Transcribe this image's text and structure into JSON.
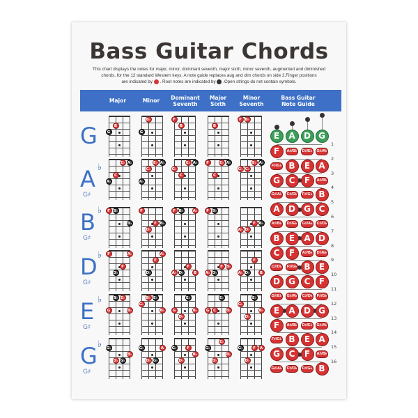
{
  "title": "Bass Guitar Chords",
  "description": {
    "line1": "This chart displays the notes for major, minor, dominant seventh, major sixth, minor seventh, augmented and diminished",
    "line2": "chords, for the 12 standard Western keys. A note guide replaces aug and dim chords on side 2.Finger positions",
    "line3a": "are indicated by",
    "line3b": ". Root notes are indicated by",
    "line3c": ".Open strings do not contain symbols."
  },
  "colors": {
    "finger": "#d93434",
    "root": "#2e2e2e",
    "header": "#3d70c6",
    "open_string": "#3c9e5a",
    "key_letter": "#3d70c6"
  },
  "header": {
    "columns": [
      "Major",
      "Minor",
      "Dominant Seventh",
      "Major Sixth",
      "Minor Seventh"
    ],
    "note_guide": "Bass Guitar Note Guide"
  },
  "keys": [
    {
      "letter": "G",
      "flat": "",
      "sub": "",
      "chords": [
        [
          {
            "s": 1,
            "f": 2,
            "n": "B"
          },
          {
            "s": 0,
            "f": 3,
            "n": "G",
            "r": true
          }
        ],
        [
          {
            "s": 1,
            "f": 1,
            "n": "B♭"
          },
          {
            "s": 0,
            "f": 3,
            "n": "G",
            "r": true
          }
        ],
        [
          {
            "s": 0,
            "f": 1,
            "n": "F"
          },
          {
            "s": 1,
            "f": 2,
            "n": "B"
          }
        ],
        [
          {
            "s": 1,
            "f": 2,
            "n": "B"
          }
        ],
        [
          {
            "s": 0,
            "f": 1,
            "n": "F"
          },
          {
            "s": 1,
            "f": 1,
            "n": "B♭"
          }
        ]
      ]
    },
    {
      "letter": "A",
      "flat": "♭",
      "sub": "G♯",
      "chords": [
        [
          {
            "s": 2,
            "f": 1,
            "n": "E♭"
          },
          {
            "s": 3,
            "f": 1,
            "n": "A♭",
            "r": true
          },
          {
            "s": 1,
            "f": 3,
            "n": "C"
          },
          {
            "s": 0,
            "f": 4,
            "n": "A♭",
            "r": true
          }
        ],
        [
          {
            "s": 2,
            "f": 1,
            "n": "E♭"
          },
          {
            "s": 3,
            "f": 1,
            "n": "A♭",
            "r": true
          },
          {
            "s": 1,
            "f": 2,
            "n": "C♭"
          },
          {
            "s": 0,
            "f": 4,
            "n": "A♭",
            "r": true
          }
        ],
        [
          {
            "s": 2,
            "f": 1,
            "n": "E♭"
          },
          {
            "s": 3,
            "f": 1,
            "n": "A♭",
            "r": true
          },
          {
            "s": 0,
            "f": 2,
            "n": "G♭"
          },
          {
            "s": 1,
            "f": 3,
            "n": "C"
          }
        ],
        [
          {
            "s": 0,
            "f": 1,
            "n": "F"
          },
          {
            "s": 2,
            "f": 1,
            "n": "E♭"
          },
          {
            "s": 3,
            "f": 1,
            "n": "A♭",
            "r": true
          },
          {
            "s": 1,
            "f": 3,
            "n": "C"
          }
        ],
        [
          {
            "s": 2,
            "f": 1,
            "n": "E♭"
          },
          {
            "s": 3,
            "f": 1,
            "n": "A♭",
            "r": true
          },
          {
            "s": 0,
            "f": 2,
            "n": "G♭"
          },
          {
            "s": 1,
            "f": 2,
            "n": "C♭"
          }
        ]
      ]
    },
    {
      "letter": "B",
      "flat": "♭",
      "sub": "G♯",
      "chords": [
        [
          {
            "s": 0,
            "f": 1,
            "n": "F"
          },
          {
            "s": 1,
            "f": 1,
            "n": "B♭",
            "r": true
          },
          {
            "s": 3,
            "f": 3,
            "n": "B♭",
            "r": true
          }
        ],
        [
          {
            "s": 0,
            "f": 1,
            "n": "F"
          },
          {
            "s": 2,
            "f": 3,
            "n": "F"
          },
          {
            "s": 3,
            "f": 3,
            "n": "B♭",
            "r": true
          },
          {
            "s": 1,
            "f": 4,
            "n": "D♭"
          }
        ],
        [
          {
            "s": 0,
            "f": 1,
            "n": "F"
          },
          {
            "s": 1,
            "f": 1,
            "n": "B♭",
            "r": true
          },
          {
            "s": 3,
            "f": 1,
            "n": "A♭"
          }
        ],
        [
          {
            "s": 0,
            "f": 1,
            "n": "F"
          },
          {
            "s": 1,
            "f": 1,
            "n": "B♭",
            "r": true
          }
        ],
        [
          {
            "s": 2,
            "f": 3,
            "n": "F"
          },
          {
            "s": 3,
            "f": 3,
            "n": "B♭",
            "r": true
          },
          {
            "s": 0,
            "f": 4,
            "n": "A♭"
          },
          {
            "s": 1,
            "f": 4,
            "n": "D♭"
          }
        ]
      ]
    },
    {
      "letter": "D",
      "flat": "♭",
      "sub": "G♯",
      "chords": [
        [
          {
            "s": 0,
            "f": 1,
            "n": "F"
          },
          {
            "s": 3,
            "f": 1,
            "n": "A♭"
          },
          {
            "s": 2,
            "f": 3,
            "n": "F"
          },
          {
            "s": 1,
            "f": 4,
            "n": "D♭",
            "r": true
          }
        ],
        [
          {
            "s": 3,
            "f": 1,
            "n": "A♭"
          },
          {
            "s": 2,
            "f": 2,
            "n": "F"
          },
          {
            "s": 1,
            "f": 4,
            "n": "D♭",
            "r": true
          }
        ],
        [
          {
            "s": 2,
            "f": 3,
            "n": "F"
          },
          {
            "s": 0,
            "f": 4,
            "n": "A♭"
          },
          {
            "s": 1,
            "f": 4,
            "n": "D♭",
            "r": true
          },
          {
            "s": 3,
            "f": 4,
            "n": "B"
          }
        ],
        [
          {
            "s": 2,
            "f": 3,
            "n": "F"
          },
          {
            "s": 3,
            "f": 3,
            "n": "B♭"
          },
          {
            "s": 0,
            "f": 4,
            "n": "A♭"
          },
          {
            "s": 1,
            "f": 4,
            "n": "D♭",
            "r": true
          }
        ],
        [
          {
            "s": 2,
            "f": 2,
            "n": "F"
          },
          {
            "s": 0,
            "f": 4,
            "n": "A♭"
          },
          {
            "s": 1,
            "f": 4,
            "n": "D♭",
            "r": true
          },
          {
            "s": 3,
            "f": 4,
            "n": "B"
          }
        ]
      ]
    },
    {
      "letter": "E",
      "flat": "♭",
      "sub": "G♯",
      "chords": [
        [
          {
            "s": 1,
            "f": 1,
            "n": "B♭",
            "r": true
          },
          {
            "s": 2,
            "f": 1,
            "n": "E♭"
          },
          {
            "s": 0,
            "f": 3,
            "n": "G"
          },
          {
            "s": 3,
            "f": 3,
            "n": "B♭"
          }
        ],
        [
          {
            "s": 1,
            "f": 1,
            "n": "B♭"
          },
          {
            "s": 2,
            "f": 1,
            "n": "E♭",
            "r": true
          },
          {
            "s": 0,
            "f": 2,
            "n": "G♭"
          },
          {
            "s": 3,
            "f": 3,
            "n": "B♭"
          }
        ],
        [
          {
            "s": 2,
            "f": 1,
            "n": "E♭",
            "r": true
          },
          {
            "s": 0,
            "f": 3,
            "n": "G"
          },
          {
            "s": 3,
            "f": 3,
            "n": "B♭"
          },
          {
            "s": 1,
            "f": 4,
            "n": "D♭"
          }
        ],
        [
          {
            "s": 2,
            "f": 1,
            "n": "E♭",
            "r": true
          },
          {
            "s": 0,
            "f": 3,
            "n": "G"
          },
          {
            "s": 1,
            "f": 3,
            "n": "C"
          },
          {
            "s": 3,
            "f": 3,
            "n": "B♭"
          }
        ],
        [
          {
            "s": 2,
            "f": 1,
            "n": "E♭",
            "r": true
          },
          {
            "s": 0,
            "f": 2,
            "n": "G♭"
          },
          {
            "s": 3,
            "f": 3,
            "n": "B♭"
          },
          {
            "s": 1,
            "f": 4,
            "n": "D♭"
          }
        ]
      ]
    },
    {
      "letter": "G",
      "flat": "♭",
      "sub": "G♯",
      "chords": [
        [
          {
            "s": 0,
            "f": 2,
            "n": "G♭",
            "r": true
          },
          {
            "s": 3,
            "f": 3,
            "n": "B♭"
          },
          {
            "s": 1,
            "f": 4,
            "n": "D♭"
          },
          {
            "s": 2,
            "f": 4,
            "n": "G♭",
            "r": true
          }
        ],
        [
          {
            "s": 0,
            "f": 2,
            "n": "G♭",
            "r": true
          },
          {
            "s": 3,
            "f": 2,
            "n": "A"
          },
          {
            "s": 1,
            "f": 4,
            "n": "D♭"
          },
          {
            "s": 2,
            "f": 4,
            "n": "G♭",
            "r": true
          }
        ],
        [
          {
            "s": 0,
            "f": 2,
            "n": "G♭",
            "r": true
          },
          {
            "s": 2,
            "f": 2,
            "n": "F"
          },
          {
            "s": 3,
            "f": 3,
            "n": "B♭"
          },
          {
            "s": 1,
            "f": 4,
            "n": "D♭"
          }
        ],
        [
          {
            "s": 2,
            "f": 1,
            "n": "E♭"
          },
          {
            "s": 0,
            "f": 2,
            "n": "G♭",
            "r": true
          },
          {
            "s": 3,
            "f": 3,
            "n": "B♭"
          },
          {
            "s": 1,
            "f": 4,
            "n": "D♭"
          }
        ],
        [
          {
            "s": 0,
            "f": 2,
            "n": "G♭",
            "r": true
          },
          {
            "s": 2,
            "f": 2,
            "n": "F"
          },
          {
            "s": 3,
            "f": 2,
            "n": "A"
          },
          {
            "s": 1,
            "f": 4,
            "n": "D♭"
          }
        ]
      ]
    }
  ],
  "note_guide": {
    "open": [
      "E",
      "A",
      "D",
      "G"
    ],
    "fret_numbers": [
      "1",
      "2",
      "3",
      "4",
      "5",
      "6",
      "7",
      "8",
      "9",
      "10",
      "11",
      "12",
      "13",
      "14",
      "15",
      "16"
    ],
    "strings": [
      [
        "F",
        "F♯/G♭",
        "G",
        "G♯/A♭",
        "A",
        "A♯/B♭",
        "B",
        "C",
        "C♯/D♭",
        "D",
        "D♯/E♭",
        "E",
        "F",
        "F♯/G♭",
        "G",
        "G♯/A♭"
      ],
      [
        "A♯/B♭",
        "B",
        "C",
        "C♯/D♭",
        "D",
        "D♯/E♭",
        "E",
        "F",
        "F♯/G♭",
        "G",
        "G♯/A♭",
        "A",
        "A♯/B♭",
        "B",
        "C",
        "C♯/D♭"
      ],
      [
        "D♯/E♭",
        "E",
        "F",
        "F♯/G♭",
        "G",
        "G♯/A♭",
        "A",
        "A♯/B♭",
        "B",
        "C",
        "C♯/D♭",
        "D",
        "D♯/E♭",
        "E",
        "F",
        "F♯/G♭"
      ],
      [
        "G♯/A♭",
        "A",
        "A♯/B♭",
        "B",
        "C",
        "C♯/D♭",
        "D",
        "D♯/E♭",
        "E",
        "F",
        "F♯/G♭",
        "G",
        "G♯/A♭",
        "A",
        "A♯/B♭",
        "B"
      ]
    ],
    "inlay_frets": [
      3,
      5,
      7,
      9,
      12,
      15
    ]
  }
}
